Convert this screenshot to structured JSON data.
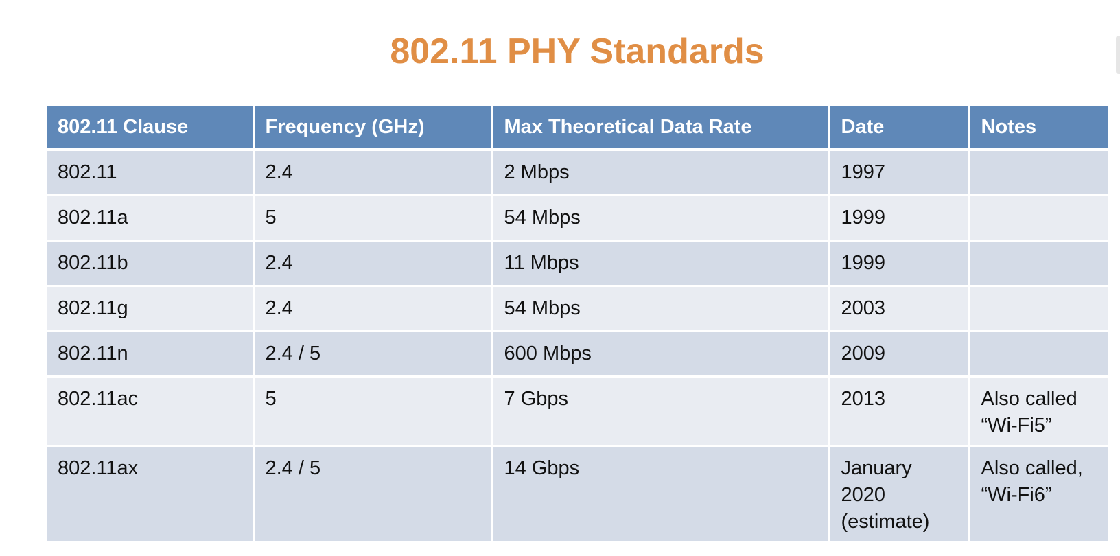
{
  "title": "802.11 PHY Standards",
  "table": {
    "headers": [
      "802.11 Clause",
      "Frequency (GHz)",
      "Max Theoretical Data Rate",
      "Date",
      "Notes"
    ],
    "rows": [
      [
        "802.11",
        "2.4",
        "2 Mbps",
        "1997",
        ""
      ],
      [
        "802.11a",
        "5",
        "54 Mbps",
        "1999",
        ""
      ],
      [
        "802.11b",
        "2.4",
        "11 Mbps",
        "1999",
        ""
      ],
      [
        "802.11g",
        "2.4",
        "54 Mbps",
        "2003",
        ""
      ],
      [
        "802.11n",
        "2.4 / 5",
        "600 Mbps",
        "2009",
        ""
      ],
      [
        "802.11ac",
        "5",
        "7 Gbps",
        "2013",
        "Also called\n“Wi-Fi5”"
      ],
      [
        "802.11ax",
        "2.4 / 5",
        "14 Gbps",
        "January\n2020\n(estimate)",
        "Also called,\n“Wi-Fi6”"
      ]
    ]
  },
  "colors": {
    "title": "#e08e45",
    "header_bg": "#5f88b8",
    "row_odd": "#d4dbe7",
    "row_even": "#e9ecf2"
  }
}
